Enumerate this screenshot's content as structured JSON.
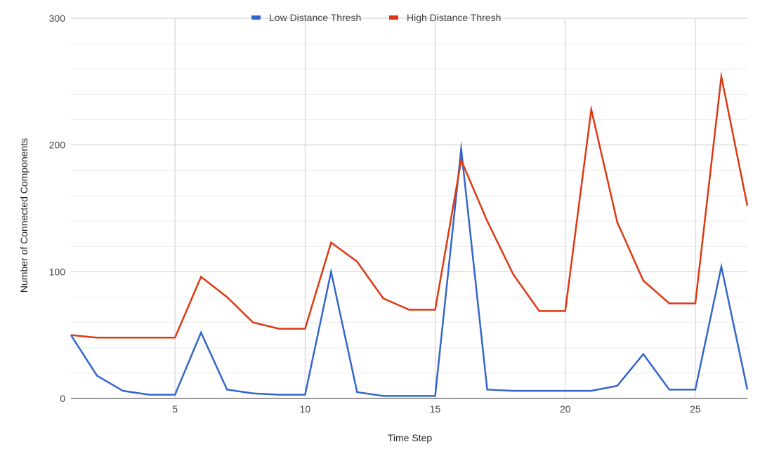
{
  "chart_data": {
    "type": "line",
    "title": "",
    "xlabel": "Time Step",
    "ylabel": "Number of Connected Components",
    "xlim": [
      1,
      27
    ],
    "ylim": [
      0,
      300
    ],
    "x_ticks": [
      5,
      10,
      15,
      20,
      25
    ],
    "y_ticks": [
      0,
      100,
      200,
      300
    ],
    "grid": true,
    "legend_position": "top-center",
    "x": [
      1,
      2,
      3,
      4,
      5,
      6,
      7,
      8,
      9,
      10,
      11,
      12,
      13,
      14,
      15,
      16,
      17,
      18,
      19,
      20,
      21,
      22,
      23,
      24,
      25,
      26,
      27
    ],
    "series": [
      {
        "name": "Low Distance Thresh",
        "color": "#3366cc",
        "values": [
          50,
          18,
          6,
          3,
          3,
          52,
          7,
          4,
          3,
          3,
          100,
          5,
          2,
          2,
          2,
          197,
          7,
          6,
          6,
          6,
          6,
          10,
          35,
          7,
          7,
          104,
          7
        ]
      },
      {
        "name": "High Distance Thresh",
        "color": "#dc3912",
        "values": [
          50,
          48,
          48,
          48,
          48,
          96,
          80,
          60,
          55,
          55,
          123,
          108,
          79,
          70,
          70,
          188,
          140,
          98,
          69,
          69,
          228,
          139,
          93,
          75,
          75,
          254,
          152
        ]
      }
    ]
  }
}
